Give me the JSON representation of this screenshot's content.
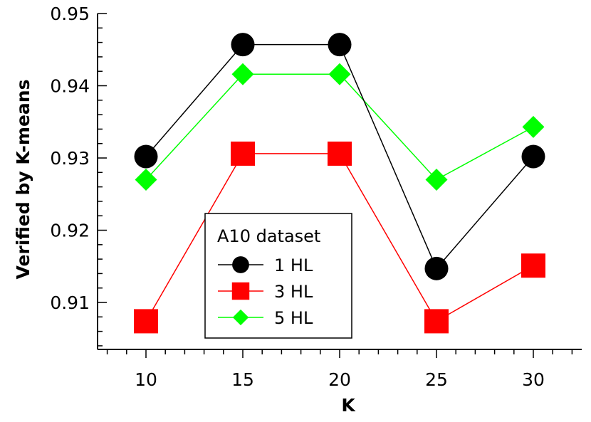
{
  "chart_data": {
    "type": "line",
    "title": "",
    "xlabel": "K",
    "ylabel": "Verified by K-means",
    "x": [
      10,
      15,
      20,
      25,
      30
    ],
    "xlim": [
      7.5,
      32.5
    ],
    "ylim": [
      0.9035,
      0.95
    ],
    "xticks": [
      10,
      15,
      20,
      25,
      30
    ],
    "yticks": [
      0.91,
      0.92,
      0.93,
      0.94,
      0.95
    ],
    "xtick_labels": [
      "10",
      "15",
      "20",
      "25",
      "30"
    ],
    "ytick_labels": [
      "0.91",
      "0.92",
      "0.93",
      "0.94",
      "0.95"
    ],
    "grid": false,
    "legend_title": "A10 dataset",
    "legend_position": "center-bottom",
    "series": [
      {
        "name": "1 HL",
        "values": [
          0.9302,
          0.9457,
          0.9457,
          0.9147,
          0.9302
        ],
        "color": "#000000",
        "marker": "circle"
      },
      {
        "name": "3 HL",
        "values": [
          0.9074,
          0.9306,
          0.9306,
          0.9074,
          0.9151
        ],
        "color": "#ff0000",
        "marker": "square"
      },
      {
        "name": "5 HL",
        "values": [
          0.927,
          0.9416,
          0.9416,
          0.927,
          0.9343
        ],
        "color": "#00ff00",
        "marker": "diamond"
      }
    ]
  }
}
